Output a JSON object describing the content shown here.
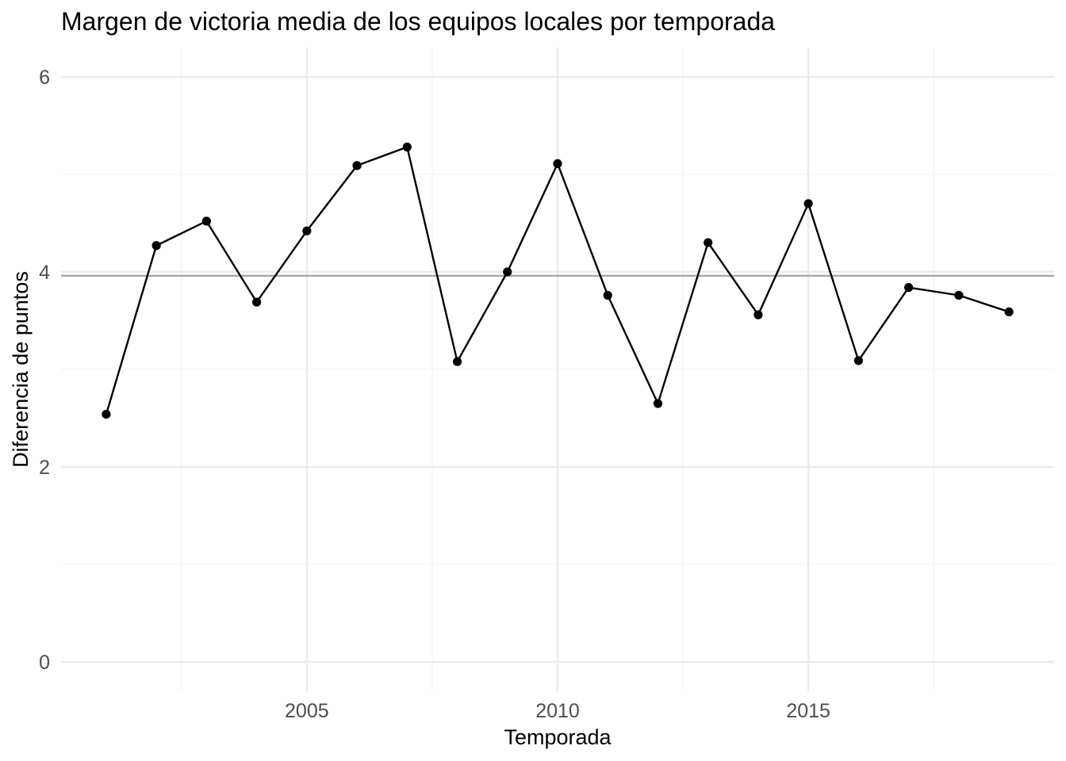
{
  "chart_data": {
    "type": "line",
    "title": "Margen de victoria media de los equipos locales por temporada",
    "xlabel": "Temporada",
    "ylabel": "Diferencia de puntos",
    "x": [
      2001,
      2002,
      2003,
      2004,
      2005,
      2006,
      2007,
      2008,
      2009,
      2010,
      2011,
      2012,
      2013,
      2014,
      2015,
      2016,
      2017,
      2018,
      2019
    ],
    "series": [
      {
        "values": [
          2.54,
          4.27,
          4.52,
          3.69,
          4.42,
          5.09,
          5.28,
          3.08,
          4.0,
          5.11,
          3.76,
          2.65,
          4.3,
          3.56,
          4.7,
          3.09,
          3.84,
          3.76,
          3.59
        ],
        "color": "#000000"
      }
    ],
    "reference_line": {
      "y": 3.96,
      "color": "#a6a6a6"
    },
    "xlim": [
      2000.1,
      2019.9
    ],
    "ylim": [
      -0.3,
      6.3
    ],
    "x_ticks": [
      {
        "value": 2005,
        "label": "2005"
      },
      {
        "value": 2010,
        "label": "2010"
      },
      {
        "value": 2015,
        "label": "2015"
      }
    ],
    "x_minor_ticks": [
      2002.5,
      2007.5,
      2012.5,
      2017.5
    ],
    "y_ticks": [
      {
        "value": 0,
        "label": "0"
      },
      {
        "value": 2,
        "label": "2"
      },
      {
        "value": 4,
        "label": "4"
      },
      {
        "value": 6,
        "label": "6"
      }
    ],
    "y_minor_ticks": [
      1,
      3,
      5
    ],
    "grid": true,
    "legend": "none",
    "colors": {
      "background": "#ffffff",
      "grid_major": "#ebebeb",
      "grid_minor": "#f3f3f3",
      "line": "#000000",
      "point": "#000000",
      "tick_text": "#4d4d4d",
      "text": "#000000"
    }
  }
}
